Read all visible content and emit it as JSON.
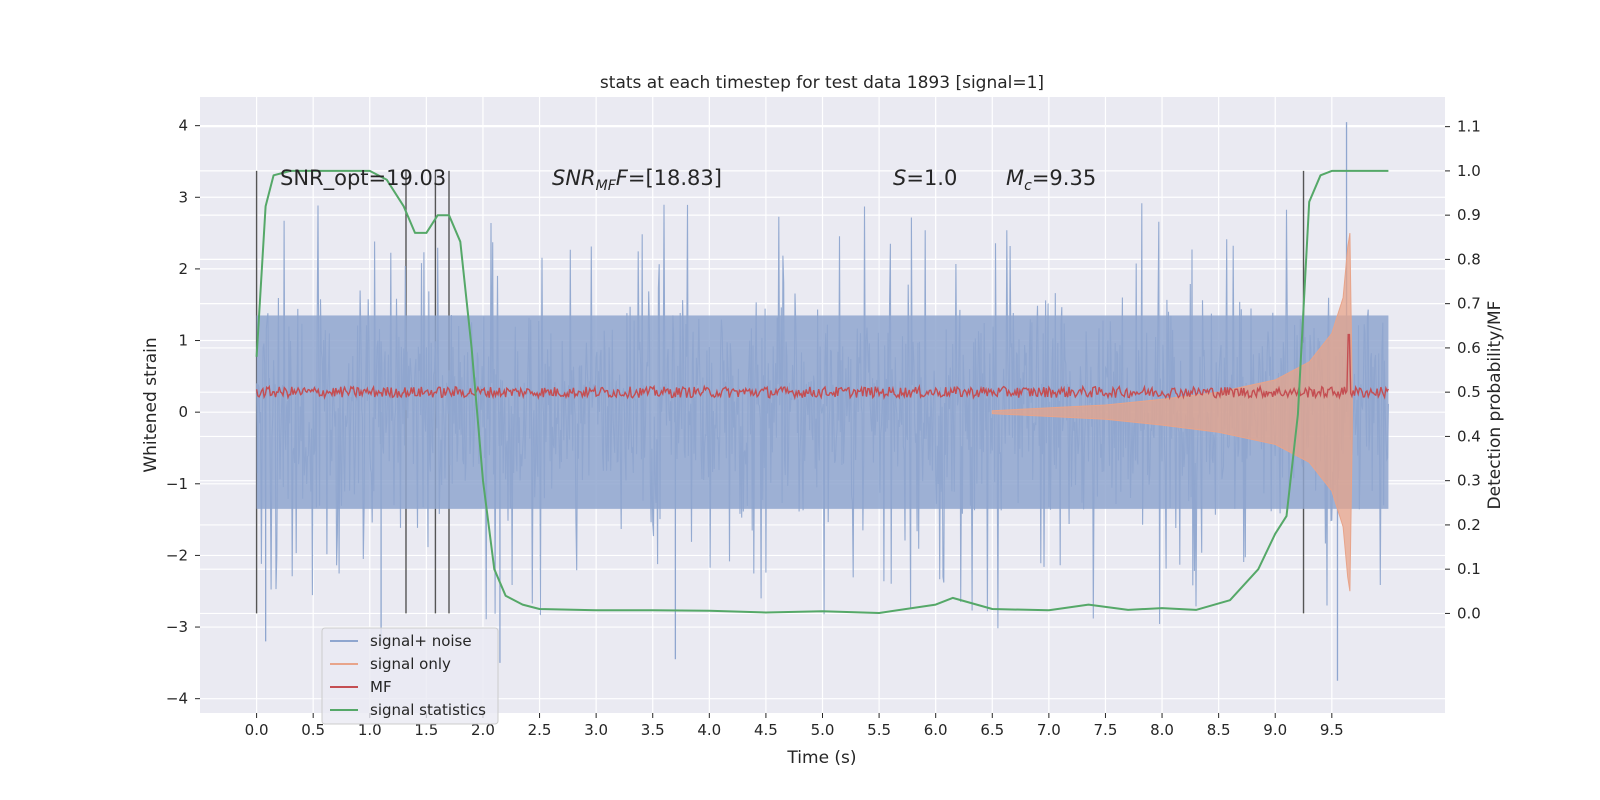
{
  "chart_data": {
    "type": "line",
    "title": "stats at each timestep for test data 1893 [signal=1]",
    "xlabel": "Time (s)",
    "ylabel_left": "Whitened strain",
    "ylabel_right": "Detection probability/MF",
    "xlim": [
      -0.5,
      10.5
    ],
    "ylim_left": [
      -4.2,
      4.4
    ],
    "ylim_right": [
      -0.225,
      1.167
    ],
    "grid": true,
    "legend_position": "lower-left",
    "x_ticks": [
      "0.0",
      "0.5",
      "1.0",
      "1.5",
      "2.0",
      "2.5",
      "3.0",
      "3.5",
      "4.0",
      "4.5",
      "5.0",
      "5.5",
      "6.0",
      "6.5",
      "7.0",
      "7.5",
      "8.0",
      "8.5",
      "9.0",
      "9.5"
    ],
    "y_ticks_left": [
      "4",
      "3",
      "2",
      "1",
      "0",
      "−1",
      "−2",
      "−3",
      "−4"
    ],
    "y_ticks_right": [
      "1.1",
      "1.0",
      "0.9",
      "0.8",
      "0.7",
      "0.6",
      "0.5",
      "0.4",
      "0.3",
      "0.2",
      "0.1",
      "0.0"
    ],
    "annotations": {
      "snr_opt": "SNR_opt=19.03",
      "snr_mf_sym": "SNR",
      "snr_mf_sub": "MF",
      "snr_mf_value": "=[18.83]",
      "s_sym": "S",
      "s_value": "=1.0",
      "mc_sym": "M",
      "mc_sub": "c",
      "mc_value": "=9.35"
    },
    "vertical_markers": [
      0.0,
      1.32,
      1.58,
      1.7,
      9.25
    ],
    "series": [
      {
        "name": "signal+ noise",
        "color": "#8fa6cf",
        "axis": "left",
        "t_start": 0.0,
        "t_end": 10.0,
        "envelope_approx": 1.35,
        "peak_max": 4.05,
        "peak_min": -3.75
      },
      {
        "name": "signal only",
        "color": "#e8a48a",
        "axis": "left",
        "description_points": {
          "t": [
            6.5,
            7.5,
            8.0,
            8.5,
            9.0,
            9.3,
            9.5,
            9.6,
            9.64,
            9.66,
            9.68
          ],
          "amp": [
            0.02,
            0.1,
            0.18,
            0.28,
            0.45,
            0.7,
            1.1,
            1.6,
            2.3,
            2.5,
            0.3
          ]
        }
      },
      {
        "name": "MF",
        "color": "#c44e52",
        "axis": "right",
        "baseline": 0.5,
        "peak_t": 9.65,
        "peak_value": 0.63
      },
      {
        "name": "signal statistics",
        "color": "#55a868",
        "axis": "right",
        "x": [
          0.0,
          0.08,
          0.15,
          0.3,
          0.6,
          1.0,
          1.15,
          1.3,
          1.4,
          1.5,
          1.6,
          1.7,
          1.8,
          1.9,
          2.0,
          2.1,
          2.2,
          2.35,
          2.5,
          3.0,
          3.5,
          4.0,
          4.5,
          5.0,
          5.5,
          6.0,
          6.15,
          6.5,
          7.0,
          7.35,
          7.7,
          8.0,
          8.3,
          8.6,
          8.85,
          9.0,
          9.1,
          9.2,
          9.3,
          9.4,
          9.5,
          9.7,
          10.0
        ],
        "y": [
          0.58,
          0.92,
          0.99,
          1.0,
          1.0,
          1.0,
          0.98,
          0.92,
          0.86,
          0.86,
          0.9,
          0.9,
          0.84,
          0.6,
          0.3,
          0.1,
          0.04,
          0.02,
          0.01,
          0.007,
          0.007,
          0.006,
          0.002,
          0.005,
          0.001,
          0.02,
          0.035,
          0.01,
          0.007,
          0.02,
          0.008,
          0.012,
          0.008,
          0.03,
          0.1,
          0.18,
          0.22,
          0.45,
          0.93,
          0.99,
          1.0,
          1.0,
          1.0
        ]
      }
    ]
  }
}
